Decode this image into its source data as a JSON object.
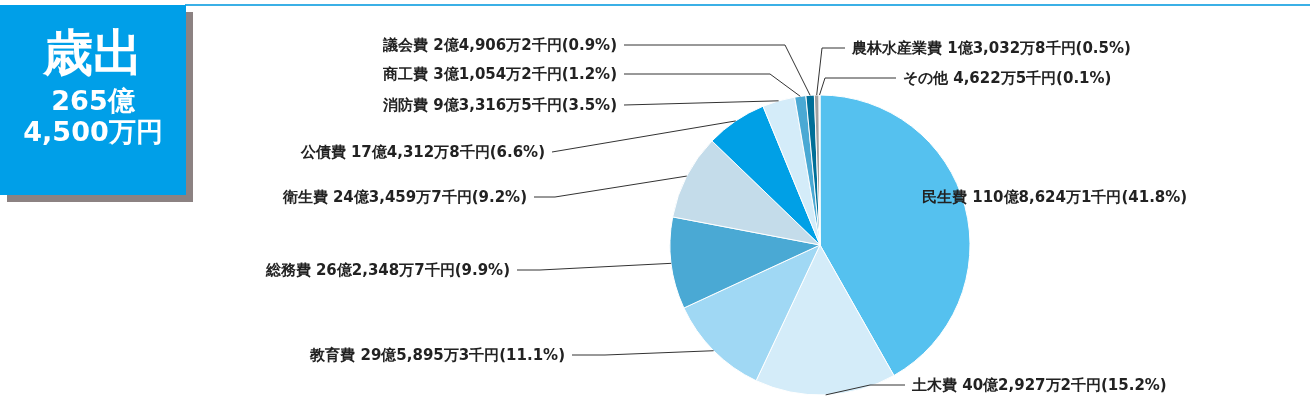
{
  "chart_data": {
    "type": "pie",
    "title": "歳出",
    "subtitle": "265億\n4,500万円",
    "categories": [
      "民生費",
      "土木費",
      "教育費",
      "総務費",
      "衛生費",
      "公債費",
      "消防費",
      "商工費",
      "議会費",
      "農林水産業費",
      "その他"
    ],
    "values": [
      41.8,
      15.2,
      11.1,
      9.9,
      9.2,
      6.6,
      3.5,
      1.2,
      0.9,
      0.5,
      0.1
    ],
    "value_labels": [
      "110億8,624万1千円(41.8%)",
      "40億2,927万2千円(15.2%)",
      "29億5,895万3千円(11.1%)",
      "26億2,348万7千円(9.9%)",
      "24億3,459万7千円(9.2%)",
      "17億4,312万8千円(6.6%)",
      "9億3,316万5千円(3.5%)",
      "3億1,054万2千円(1.2%)",
      "2億4,906万2千円(0.9%)",
      "1億3,032万8千円(0.5%)",
      "4,622万5千円(0.1%)"
    ],
    "colors": [
      "#55c1ef",
      "#d4ecf9",
      "#a0d8f4",
      "#4aa9d4",
      "#c4dcea",
      "#00a0e6",
      "#d4ecf9",
      "#4aa9d4",
      "#006f98",
      "#a0a0a0",
      "#c8d8e0"
    ],
    "legend": false
  }
}
